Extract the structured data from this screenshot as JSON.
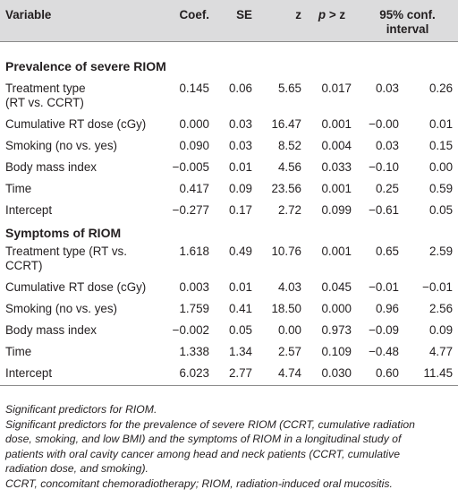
{
  "headers": {
    "variable": "Variable",
    "coef": "Coef.",
    "se": "SE",
    "z": "z",
    "p_prefix": "p",
    "p_suffix": " > z",
    "ci_line1": "95% conf.",
    "ci_line2": "interval"
  },
  "sections": [
    {
      "title": "Prevalence of severe RIOM",
      "rows": [
        {
          "label_l1": "Treatment type",
          "label_l2": "(RT vs. CCRT)",
          "coef": "0.145",
          "se": "0.06",
          "z": "5.65",
          "p": "0.017",
          "ci_low": "0.03",
          "ci_high": "0.26"
        },
        {
          "label_l1": "Cumulative RT dose (cGy)",
          "label_l2": "",
          "coef": "0.000",
          "se": "0.03",
          "z": "16.47",
          "p": "0.001",
          "ci_low": "−0.00",
          "ci_high": "0.01"
        },
        {
          "label_l1": "Smoking (no vs. yes)",
          "label_l2": "",
          "coef": "0.090",
          "se": "0.03",
          "z": "8.52",
          "p": "0.004",
          "ci_low": "0.03",
          "ci_high": "0.15"
        },
        {
          "label_l1": "Body mass index",
          "label_l2": "",
          "coef": "−0.005",
          "se": "0.01",
          "z": "4.56",
          "p": "0.033",
          "ci_low": "−0.10",
          "ci_high": "0.00"
        },
        {
          "label_l1": "Time",
          "label_l2": "",
          "coef": "0.417",
          "se": "0.09",
          "z": "23.56",
          "p": "0.001",
          "ci_low": "0.25",
          "ci_high": "0.59"
        },
        {
          "label_l1": "Intercept",
          "label_l2": "",
          "coef": "−0.277",
          "se": "0.17",
          "z": "2.72",
          "p": "0.099",
          "ci_low": "−0.61",
          "ci_high": "0.05"
        }
      ]
    },
    {
      "title": "Symptoms of RIOM",
      "rows": [
        {
          "label_l1": "Treatment type (RT vs.",
          "label_l2": "CCRT)",
          "coef": "1.618",
          "se": "0.49",
          "z": "10.76",
          "p": "0.001",
          "ci_low": "0.65",
          "ci_high": "2.59"
        },
        {
          "label_l1": "Cumulative RT dose (cGy)",
          "label_l2": "",
          "coef": "0.003",
          "se": "0.01",
          "z": "4.03",
          "p": "0.045",
          "ci_low": "−0.01",
          "ci_high": "−0.01"
        },
        {
          "label_l1": "Smoking (no vs. yes)",
          "label_l2": "",
          "coef": "1.759",
          "se": "0.41",
          "z": "18.50",
          "p": "0.000",
          "ci_low": "0.96",
          "ci_high": "2.56"
        },
        {
          "label_l1": "Body mass index",
          "label_l2": "",
          "coef": "−0.002",
          "se": "0.05",
          "z": "0.00",
          "p": "0.973",
          "ci_low": "−0.09",
          "ci_high": "0.09"
        },
        {
          "label_l1": "Time",
          "label_l2": "",
          "coef": "1.338",
          "se": "1.34",
          "z": "2.57",
          "p": "0.109",
          "ci_low": "−0.48",
          "ci_high": "4.77"
        },
        {
          "label_l1": "Intercept",
          "label_l2": "",
          "coef": "6.023",
          "se": "2.77",
          "z": "4.74",
          "p": "0.030",
          "ci_low": "0.60",
          "ci_high": "11.45"
        }
      ]
    }
  ],
  "footnotes": {
    "note1": "Significant predictors for RIOM.",
    "note2_l1": "Significant predictors for the prevalence of severe RIOM (CCRT, cumulative radiation",
    "note2_l2": "dose, smoking, and low BMI) and the symptoms of RIOM in a longitudinal study of",
    "note2_l3": "patients with oral cavity cancer among head and neck patients (CCRT, cumulative",
    "note2_l4": "radiation dose, and smoking).",
    "note3": "CCRT, concomitant chemoradiotherapy; RIOM, radiation-induced oral mucositis."
  }
}
